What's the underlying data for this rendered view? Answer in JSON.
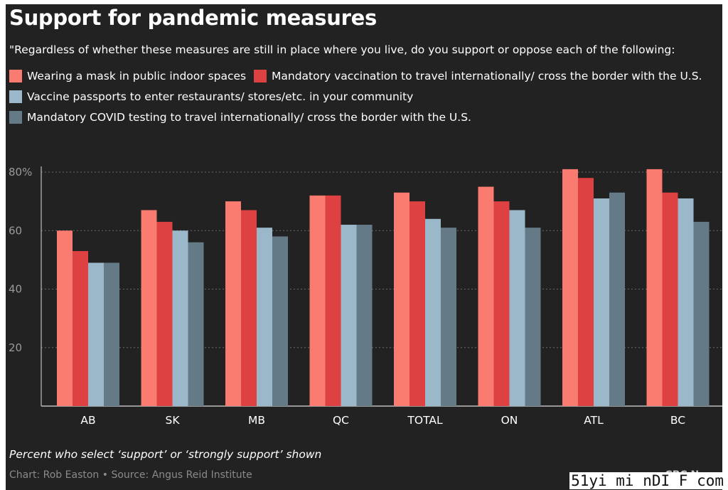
{
  "title": "Support for pandemic measures",
  "subtitle": "\"Regardless of whether these measures are still in place where you live, do you support or oppose each of the following:",
  "note": "Percent who select ‘support’ or ‘strongly support’ shown",
  "credit": "Chart: Rob Easton • Source: Angus Reid Institute",
  "brand": "CBC News",
  "watermark": "51yi mi nDI F com",
  "colors": {
    "background": "#222222",
    "grid": "#6a6a6a",
    "axis": "#bdbdbd",
    "text": "#ffffff"
  },
  "chart_data": {
    "type": "bar",
    "categories": [
      "AB",
      "SK",
      "MB",
      "QC",
      "TOTAL",
      "ON",
      "ATL",
      "BC"
    ],
    "series": [
      {
        "name": "Wearing a mask in public indoor spaces",
        "color": "#fa7b6f",
        "values": [
          60,
          67,
          70,
          72,
          73,
          75,
          81,
          81
        ]
      },
      {
        "name": "Mandatory vaccination to travel internationally/ cross the border with the U.S.",
        "color": "#dd4141",
        "values": [
          53,
          63,
          67,
          72,
          70,
          70,
          78,
          73
        ]
      },
      {
        "name": "Vaccine passports to enter restaurants/ stores/etc. in your community",
        "color": "#9bb8ca",
        "values": [
          49,
          60,
          61,
          62,
          64,
          67,
          71,
          71
        ]
      },
      {
        "name": "Mandatory COVID testing to travel internationally/ cross the border with the U.S.",
        "color": "#657a87",
        "values": [
          49,
          56,
          58,
          62,
          61,
          61,
          73,
          63
        ]
      }
    ],
    "yticks": [
      20,
      40,
      60,
      80
    ],
    "ytick_labels": [
      "20",
      "40",
      "60",
      "80%"
    ],
    "ylim": [
      0,
      80
    ],
    "grid": true,
    "grid_style": "dotted",
    "legend_position": "top-left"
  }
}
